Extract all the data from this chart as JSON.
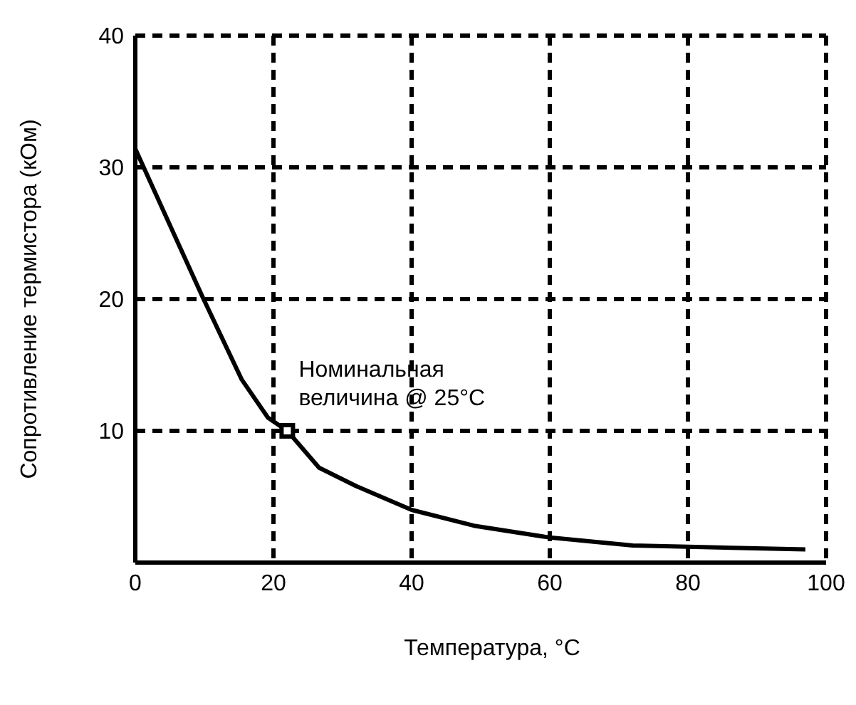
{
  "chart_data": {
    "type": "line",
    "xlabel": "Температура, °C",
    "ylabel": "Сопротивление термистора (кОм)",
    "xlim": [
      0,
      100
    ],
    "ylim": [
      0,
      40
    ],
    "xticks": [
      0,
      20,
      40,
      60,
      80,
      100
    ],
    "yticks": [
      {
        "value": 0,
        "label": null
      },
      10,
      20,
      30,
      40
    ],
    "grid": true,
    "line_style": "solid",
    "series": [
      {
        "color": "#000000",
        "marker": "none",
        "x": [
          0,
          9.7,
          15.4,
          19.2,
          22,
          26.6,
          32,
          40,
          49,
          60,
          72,
          80,
          97
        ],
        "values": [
          31.4,
          20.2,
          13.9,
          11,
          10,
          7.2,
          5.8,
          4,
          2.8,
          1.9,
          1.3,
          1.2,
          1
        ]
      },
      {
        "type": "scatter",
        "color": "#000000",
        "marker": "square",
        "x": [
          22
        ],
        "values": [
          10
        ]
      }
    ],
    "annotations": [
      {
        "text": "Номинальная\nвеличина @ 25°C",
        "x": 22,
        "y": 10
      }
    ]
  }
}
